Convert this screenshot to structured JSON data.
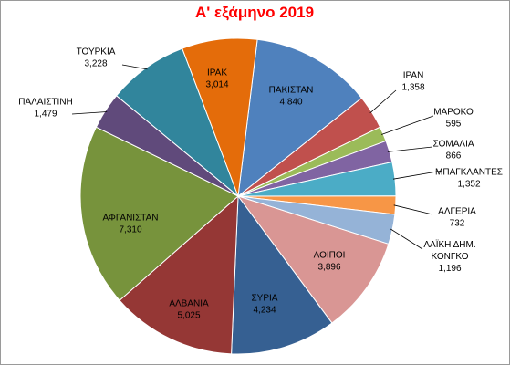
{
  "chart_data": {
    "type": "pie",
    "title": "Α' εξάμηνο 2019",
    "start_category": "ΠΑΚΙΣΤΑΝ",
    "direction": "clockwise",
    "slices": [
      {
        "label": "ΠΑΚΙΣΤΑΝ",
        "value_text": "4,840",
        "value": 4840,
        "color": "#4f81bd"
      },
      {
        "label": "ΙΡΑΝ",
        "value_text": "1,358",
        "value": 1358,
        "color": "#c0504d"
      },
      {
        "label": "ΜΑΡΟΚΟ",
        "value_text": "595",
        "value": 595,
        "color": "#9bbb59"
      },
      {
        "label": "ΣΟΜΑΛΙΑ",
        "value_text": "866",
        "value": 866,
        "color": "#8064a2"
      },
      {
        "label": "ΜΠΑΓΚΛΑΝΤΕΣ",
        "value_text": "1,352",
        "value": 1352,
        "color": "#4bacc6"
      },
      {
        "label": "ΑΛΓΕΡΙΑ",
        "value_text": "732",
        "value": 732,
        "color": "#f79646"
      },
      {
        "label": "ΛΑΪΚΗ ΔΗΜ. ΚΟΝΓΚΟ",
        "label_lines": [
          "ΛΑΪΚΗ ΔΗΜ.",
          "ΚΟΝΓΚΟ"
        ],
        "value_text": "1,196",
        "value": 1196,
        "color": "#95b3d7"
      },
      {
        "label": "ΛΟΙΠΟΙ",
        "value_text": "3,896",
        "value": 3896,
        "color": "#d99694"
      },
      {
        "label": "ΣΥΡΙΑ",
        "value_text": "4,234",
        "value": 4234,
        "color": "#366092"
      },
      {
        "label": "ΑΛΒΑΝΙΑ",
        "value_text": "5,025",
        "value": 5025,
        "color": "#953735"
      },
      {
        "label": "ΑΦΓΑΝΙΣΤΑΝ",
        "value_text": "7,310",
        "value": 7310,
        "color": "#77933c"
      },
      {
        "label": "ΠΑΛΑΙΣΤΙΝΗ",
        "value_text": "1,479",
        "value": 1479,
        "color": "#604a7b"
      },
      {
        "label": "ΤΟΥΡΚΙΑ",
        "value_text": "3,228",
        "value": 3228,
        "color": "#31859c"
      },
      {
        "label": "ΙΡΑΚ",
        "value_text": "3,014",
        "value": 3014,
        "color": "#e46c0a"
      }
    ]
  }
}
